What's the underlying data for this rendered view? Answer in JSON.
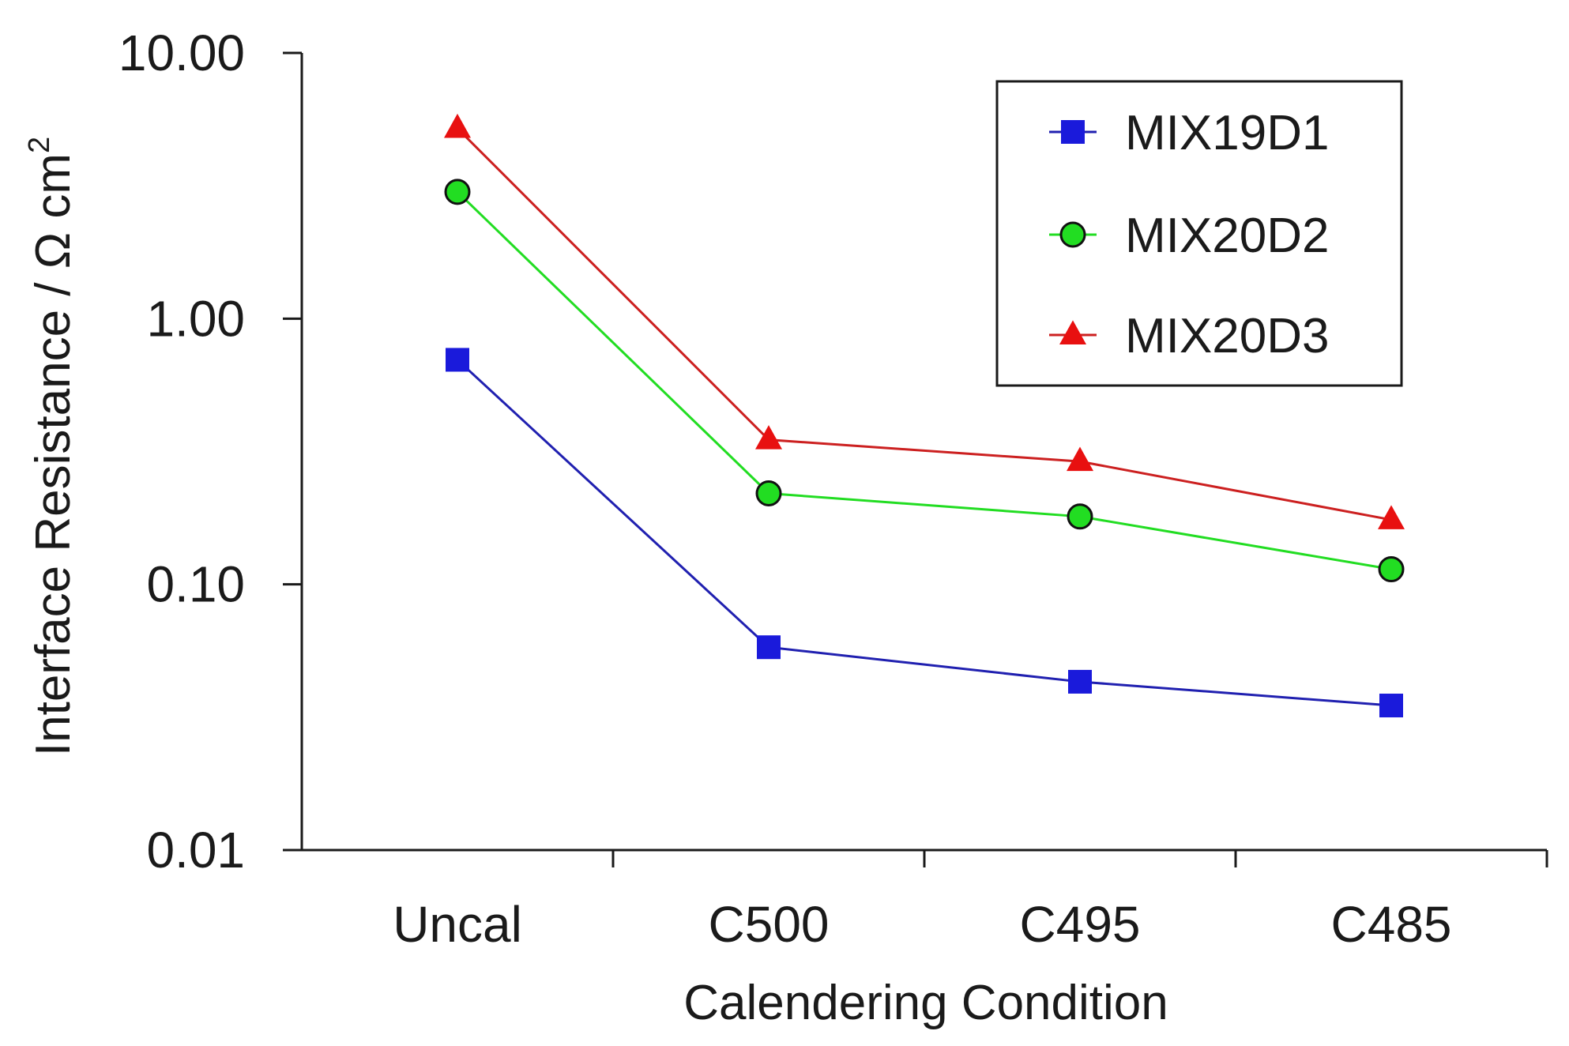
{
  "chart_data": {
    "type": "line",
    "title": "",
    "xlabel": "Calendering Condition",
    "ylabel": "Interface Resistance / Ω cm",
    "ylabel_superscript": "2",
    "yscale": "log",
    "ylim": [
      0.01,
      10
    ],
    "yticks": [
      {
        "value": 10,
        "label": "10.00"
      },
      {
        "value": 1,
        "label": "1.00"
      },
      {
        "value": 0.1,
        "label": "0.10"
      },
      {
        "value": 0.01,
        "label": "0.01"
      }
    ],
    "categories": [
      "Uncal",
      "C500",
      "C495",
      "C485"
    ],
    "grid": false,
    "legend_position": "top-right",
    "series": [
      {
        "name": "MIX19D1",
        "color": "#1a1adb",
        "line_color": "#2020b0",
        "marker": "square",
        "values": [
          0.7,
          0.058,
          0.043,
          0.035
        ]
      },
      {
        "name": "MIX20D2",
        "color": "#22dd22",
        "line_color": "#22dd22",
        "marker": "circle",
        "values": [
          3.0,
          0.22,
          0.18,
          0.114
        ]
      },
      {
        "name": "MIX20D3",
        "color": "#e81010",
        "line_color": "#cc2020",
        "marker": "triangle",
        "values": [
          5.2,
          0.35,
          0.29,
          0.175
        ]
      }
    ]
  }
}
